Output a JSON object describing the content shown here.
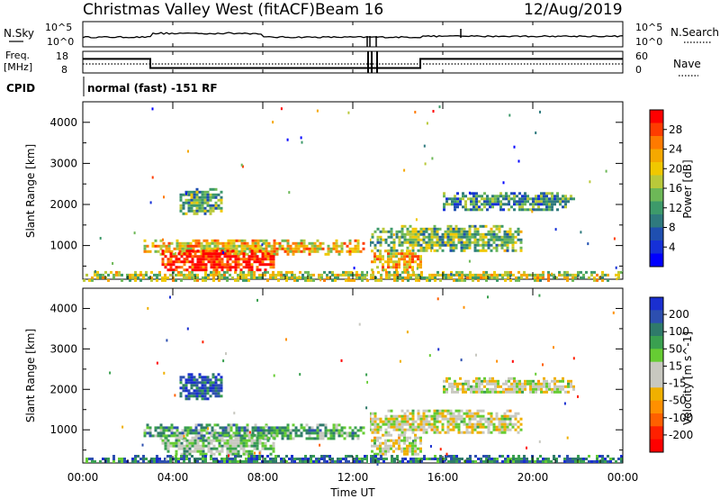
{
  "header": {
    "title": "Christmas Valley West (fitACF)",
    "beam": "Beam 16",
    "date": "12/Aug/2019"
  },
  "params": {
    "nsky_label": "N.Sky",
    "nsearch_label": "N.Search",
    "freq_label_1": "Freq.",
    "freq_label_2": "[MHz]",
    "nave_label": "Nave",
    "cpid_label": "CPID",
    "cpid_text": "normal (fast) -151 RF",
    "noise_ticks": [
      "10^5",
      "10^0"
    ],
    "freq_ticks": [
      "18",
      "8"
    ],
    "nave_ticks": [
      "60",
      "0"
    ]
  },
  "chart_data": [
    {
      "type": "line",
      "panel": "frequency",
      "ylabel": "Freq. [MHz]",
      "y2label": "Nave",
      "x_hours": [
        0,
        3,
        3,
        15,
        15,
        24
      ],
      "freq_mhz": [
        14.5,
        14.5,
        10.3,
        10.3,
        14.5,
        14.5
      ],
      "nave": [
        25,
        25,
        25,
        25,
        25,
        25
      ]
    },
    {
      "type": "heatmap",
      "panel": "power",
      "ylabel": "Slant Range [km]",
      "colorbar_label": "Power [dB]",
      "colorbar_ticks": [
        "28",
        "24",
        "20",
        "16",
        "12",
        "8",
        "4"
      ],
      "colorbar_colors": [
        "#ff0000",
        "#ff3c00",
        "#ff7a00",
        "#f5a800",
        "#f0c800",
        "#b9c93a",
        "#6db857",
        "#3d9a6a",
        "#2f7a7e",
        "#1f4fb0",
        "#1530d8",
        "#0000ff"
      ],
      "x_range_hours": [
        0,
        24
      ],
      "y_range_km": [
        180,
        4500
      ],
      "yticks": [
        1000,
        2000,
        3000,
        4000
      ],
      "regions": [
        {
          "x0": 2.7,
          "x1": 12.5,
          "y0": 800,
          "y1": 1150,
          "level": 0.65
        },
        {
          "x0": 3.5,
          "x1": 8.5,
          "y0": 400,
          "y1": 900,
          "level": 0.95
        },
        {
          "x0": 4.3,
          "x1": 6.2,
          "y0": 1750,
          "y1": 2400,
          "level": 0.4
        },
        {
          "x0": 12.7,
          "x1": 19.5,
          "y0": 900,
          "y1": 1500,
          "level": 0.45
        },
        {
          "x0": 16.0,
          "x1": 21.8,
          "y0": 1900,
          "y1": 2300,
          "level": 0.35
        },
        {
          "x0": 12.8,
          "x1": 15.0,
          "y0": 400,
          "y1": 900,
          "level": 0.7
        },
        {
          "x0": 0.0,
          "x1": 24.0,
          "y0": 180,
          "y1": 380,
          "level": 0.55
        }
      ]
    },
    {
      "type": "heatmap",
      "panel": "velocity",
      "ylabel": "Slant Range [km]",
      "colorbar_label": "Velocity [m s^-1]",
      "colorbar_ticks": [
        "200",
        "100",
        "50",
        "15",
        "-15",
        "-50",
        "-100",
        "-200"
      ],
      "colorbar_colors": [
        "#1a2fd0",
        "#2d4fb0",
        "#2f7a6a",
        "#3aa050",
        "#66cc33",
        "#c8c8c0",
        "#c8c8c0",
        "#f0b000",
        "#ff9000",
        "#ff6000",
        "#ff2000",
        "#ff0000"
      ],
      "x_range_hours": [
        0,
        24
      ],
      "y_range_km": [
        180,
        4500
      ],
      "yticks": [
        1000,
        2000,
        3000,
        4000
      ],
      "regions": [
        {
          "x0": 2.7,
          "x1": 12.5,
          "y0": 800,
          "y1": 1150,
          "level": 0.7
        },
        {
          "x0": 3.5,
          "x1": 8.5,
          "y0": 400,
          "y1": 900,
          "level": 0.6
        },
        {
          "x0": 4.3,
          "x1": 6.2,
          "y0": 1750,
          "y1": 2400,
          "level": 0.85
        },
        {
          "x0": 12.7,
          "x1": 19.5,
          "y0": 900,
          "y1": 1500,
          "level": 0.5
        },
        {
          "x0": 16.0,
          "x1": 21.8,
          "y0": 1900,
          "y1": 2300,
          "level": 0.5
        },
        {
          "x0": 12.8,
          "x1": 15.0,
          "y0": 400,
          "y1": 900,
          "level": 0.5
        },
        {
          "x0": 0.0,
          "x1": 24.0,
          "y0": 180,
          "y1": 380,
          "level": 0.8
        }
      ]
    }
  ],
  "xaxis": {
    "label": "Time UT",
    "ticks": [
      "00:00",
      "04:00",
      "08:00",
      "12:00",
      "16:00",
      "20:00",
      "00:00"
    ]
  }
}
